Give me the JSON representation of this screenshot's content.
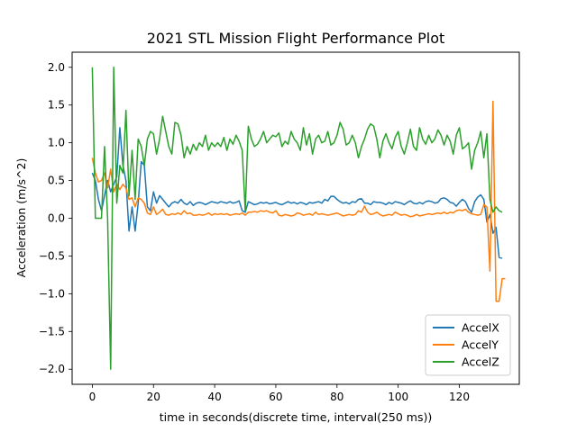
{
  "chart_data": {
    "type": "line",
    "title": "2021 STL Mission Flight Performance Plot",
    "xlabel": "time in seconds(discrete time, interval(250 ms))",
    "ylabel": "Acceleration (m/s^2)",
    "xlim": [
      -6.6,
      139.6
    ],
    "ylim": [
      -2.2,
      2.2
    ],
    "xticks": [
      0,
      20,
      40,
      60,
      80,
      100,
      120
    ],
    "xtick_labels": [
      "0",
      "20",
      "40",
      "60",
      "80",
      "100",
      "120"
    ],
    "yticks": [
      -2.0,
      -1.5,
      -1.0,
      -0.5,
      0.0,
      0.5,
      1.0,
      1.5,
      2.0
    ],
    "ytick_labels": [
      "−2.0",
      "−1.5",
      "−1.0",
      "−0.5",
      "0.0",
      "0.5",
      "1.0",
      "1.5",
      "2.0"
    ],
    "grid": false,
    "legend_position": "bottom-right",
    "series": [
      {
        "name": "AccelX",
        "color": "#1f77b4",
        "values": [
          0.6,
          0.5,
          0.25,
          0.1,
          0.3,
          0.5,
          0.35,
          0.45,
          0.55,
          1.2,
          0.7,
          0.5,
          -0.17,
          0.15,
          -0.17,
          0.2,
          0.75,
          0.7,
          0.15,
          0.1,
          0.35,
          0.2,
          0.3,
          0.25,
          0.2,
          0.15,
          0.2,
          0.22,
          0.2,
          0.25,
          0.2,
          0.18,
          0.22,
          0.17,
          0.2,
          0.21,
          0.2,
          0.18,
          0.2,
          0.22,
          0.21,
          0.2,
          0.22,
          0.21,
          0.2,
          0.22,
          0.2,
          0.21,
          0.23,
          0.1,
          0.08,
          0.22,
          0.2,
          0.18,
          0.19,
          0.21,
          0.2,
          0.21,
          0.19,
          0.2,
          0.21,
          0.19,
          0.18,
          0.2,
          0.22,
          0.2,
          0.21,
          0.19,
          0.21,
          0.2,
          0.18,
          0.21,
          0.2,
          0.21,
          0.22,
          0.2,
          0.25,
          0.23,
          0.29,
          0.29,
          0.25,
          0.22,
          0.2,
          0.21,
          0.19,
          0.22,
          0.21,
          0.25,
          0.26,
          0.2,
          0.2,
          0.18,
          0.22,
          0.21,
          0.21,
          0.2,
          0.18,
          0.21,
          0.19,
          0.22,
          0.21,
          0.2,
          0.18,
          0.21,
          0.23,
          0.2,
          0.19,
          0.21,
          0.19,
          0.22,
          0.23,
          0.22,
          0.2,
          0.21,
          0.26,
          0.27,
          0.25,
          0.21,
          0.2,
          0.16,
          0.21,
          0.25,
          0.22,
          0.13,
          0.08,
          0.22,
          0.28,
          0.31,
          0.25,
          -0.05,
          0.05,
          -0.2,
          -0.12,
          -0.52,
          -0.53
        ]
      },
      {
        "name": "AccelY",
        "color": "#ff7f0e",
        "values": [
          0.8,
          0.6,
          0.48,
          0.5,
          0.6,
          0.4,
          0.65,
          0.35,
          0.45,
          0.38,
          0.45,
          0.4,
          0.25,
          0.27,
          0.15,
          0.27,
          0.25,
          0.2,
          0.07,
          0.05,
          0.15,
          0.05,
          0.08,
          0.12,
          0.05,
          0.04,
          0.06,
          0.05,
          0.07,
          0.05,
          0.1,
          0.06,
          0.07,
          0.04,
          0.04,
          0.05,
          0.04,
          0.05,
          0.07,
          0.04,
          0.06,
          0.05,
          0.06,
          0.05,
          0.06,
          0.04,
          0.05,
          0.06,
          0.05,
          0.07,
          0.04,
          0.08,
          0.08,
          0.09,
          0.08,
          0.1,
          0.09,
          0.1,
          0.08,
          0.07,
          0.1,
          0.04,
          0.03,
          0.05,
          0.04,
          0.03,
          0.04,
          0.07,
          0.06,
          0.04,
          0.05,
          0.06,
          0.04,
          0.08,
          0.05,
          0.06,
          0.05,
          0.04,
          0.05,
          0.06,
          0.07,
          0.05,
          0.03,
          0.04,
          0.05,
          0.04,
          0.05,
          0.1,
          0.08,
          0.16,
          0.08,
          0.05,
          0.06,
          0.08,
          0.05,
          0.03,
          0.04,
          0.05,
          0.04,
          0.08,
          0.06,
          0.04,
          0.05,
          0.04,
          0.02,
          0.03,
          0.05,
          0.03,
          0.04,
          0.05,
          0.06,
          0.05,
          0.06,
          0.07,
          0.06,
          0.08,
          0.06,
          0.08,
          0.07,
          0.1,
          0.11,
          0.1,
          0.12,
          0.08,
          0.06,
          0.05,
          0.04,
          0.05,
          0.18,
          0.15,
          -0.7,
          1.55,
          -1.1,
          -1.1,
          -0.8,
          -0.8
        ]
      },
      {
        "name": "AccelZ",
        "color": "#2ca02c",
        "values": [
          2.0,
          0.0,
          0.0,
          0.0,
          0.95,
          0.0,
          -2.0,
          2.0,
          0.2,
          0.7,
          0.6,
          1.43,
          0.3,
          0.9,
          0.25,
          1.05,
          0.95,
          0.7,
          1.05,
          1.15,
          1.12,
          0.85,
          1.05,
          1.35,
          1.15,
          0.95,
          0.85,
          1.27,
          1.25,
          1.1,
          0.8,
          0.95,
          0.85,
          0.98,
          0.9,
          1.0,
          0.95,
          1.1,
          0.9,
          1.0,
          0.95,
          1.0,
          0.95,
          1.07,
          0.9,
          1.05,
          0.98,
          1.1,
          1.02,
          0.9,
          0.1,
          1.22,
          1.05,
          0.95,
          0.98,
          1.05,
          1.15,
          1.0,
          1.05,
          1.1,
          1.08,
          1.13,
          0.95,
          1.02,
          0.98,
          1.15,
          1.05,
          1.0,
          0.9,
          1.2,
          0.97,
          1.12,
          0.85,
          1.05,
          1.1,
          1.0,
          1.02,
          1.15,
          0.97,
          1.0,
          1.1,
          1.27,
          1.18,
          0.97,
          1.0,
          1.1,
          1.0,
          0.8,
          0.95,
          1.05,
          1.18,
          1.25,
          1.22,
          1.05,
          0.8,
          1.02,
          1.12,
          1.0,
          0.92,
          1.07,
          1.15,
          0.95,
          0.85,
          1.0,
          1.18,
          0.95,
          0.9,
          1.2,
          1.05,
          0.98,
          1.1,
          1.0,
          1.05,
          1.17,
          1.1,
          0.97,
          1.1,
          1.02,
          0.85,
          1.1,
          1.2,
          0.92,
          0.95,
          1.0,
          0.65,
          0.9,
          1.0,
          1.15,
          0.8,
          1.12,
          0.25,
          0.08,
          0.15,
          0.1,
          0.08
        ]
      }
    ]
  }
}
